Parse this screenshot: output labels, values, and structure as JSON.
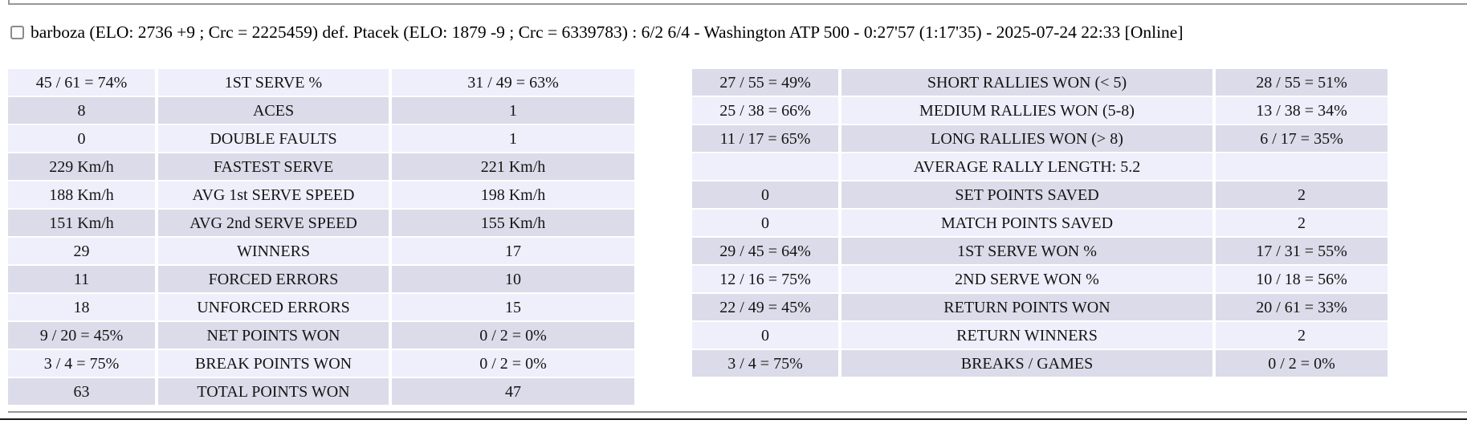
{
  "header": {
    "checkbox_checked": false,
    "text": "barboza (ELO: 2736 +9 ; Crc = 2225459) def. Ptacek (ELO: 1879 -9 ; Crc = 6339783) : 6/2 6/4 - Washington ATP 500 - 0:27'57 (1:17'35) - 2025-07-24 22:33 [Online]"
  },
  "stats_left": {
    "rows": [
      {
        "p1": "45 / 61 = 74%",
        "label": "1ST SERVE %",
        "p2": "31 / 49 = 63%"
      },
      {
        "p1": "8",
        "label": "ACES",
        "p2": "1"
      },
      {
        "p1": "0",
        "label": "DOUBLE FAULTS",
        "p2": "1"
      },
      {
        "p1": "229 Km/h",
        "label": "FASTEST SERVE",
        "p2": "221 Km/h"
      },
      {
        "p1": "188 Km/h",
        "label": "AVG 1st SERVE SPEED",
        "p2": "198 Km/h"
      },
      {
        "p1": "151 Km/h",
        "label": "AVG 2nd SERVE SPEED",
        "p2": "155 Km/h"
      },
      {
        "p1": "29",
        "label": "WINNERS",
        "p2": "17"
      },
      {
        "p1": "11",
        "label": "FORCED ERRORS",
        "p2": "10"
      },
      {
        "p1": "18",
        "label": "UNFORCED ERRORS",
        "p2": "15"
      },
      {
        "p1": "9 / 20 = 45%",
        "label": "NET POINTS WON",
        "p2": "0 / 2 = 0%"
      },
      {
        "p1": "3 / 4 = 75%",
        "label": "BREAK POINTS WON",
        "p2": "0 / 2 = 0%"
      },
      {
        "p1": "63",
        "label": "TOTAL POINTS WON",
        "p2": "47"
      }
    ]
  },
  "stats_right": {
    "rows": [
      {
        "p1": "27 / 55 = 49%",
        "label": "SHORT RALLIES WON (< 5)",
        "p2": "28 / 55 = 51%"
      },
      {
        "p1": "25 / 38 = 66%",
        "label": "MEDIUM RALLIES WON (5-8)",
        "p2": "13 / 38 = 34%"
      },
      {
        "p1": "11 / 17 = 65%",
        "label": "LONG RALLIES WON (> 8)",
        "p2": "6 / 17 = 35%"
      },
      {
        "p1": "",
        "label": "AVERAGE RALLY LENGTH: 5.2",
        "p2": ""
      },
      {
        "p1": "0",
        "label": "SET POINTS SAVED",
        "p2": "2"
      },
      {
        "p1": "0",
        "label": "MATCH POINTS SAVED",
        "p2": "2"
      },
      {
        "p1": "29 / 45 = 64%",
        "label": "1ST SERVE WON %",
        "p2": "17 / 31 = 55%"
      },
      {
        "p1": "12 / 16 = 75%",
        "label": "2ND SERVE WON %",
        "p2": "10 / 18 = 56%"
      },
      {
        "p1": "22 / 49 = 45%",
        "label": "RETURN POINTS WON",
        "p2": "20 / 61 = 33%"
      },
      {
        "p1": "0",
        "label": "RETURN WINNERS",
        "p2": "2"
      },
      {
        "p1": "3 / 4 = 75%",
        "label": "BREAKS / GAMES",
        "p2": "0 / 2 = 0%"
      }
    ]
  },
  "colors": {
    "row_light": "#efeefb",
    "row_dark": "#dcdbe9",
    "divider_gray": "#979797",
    "rule_black": "#1a1a1a"
  }
}
